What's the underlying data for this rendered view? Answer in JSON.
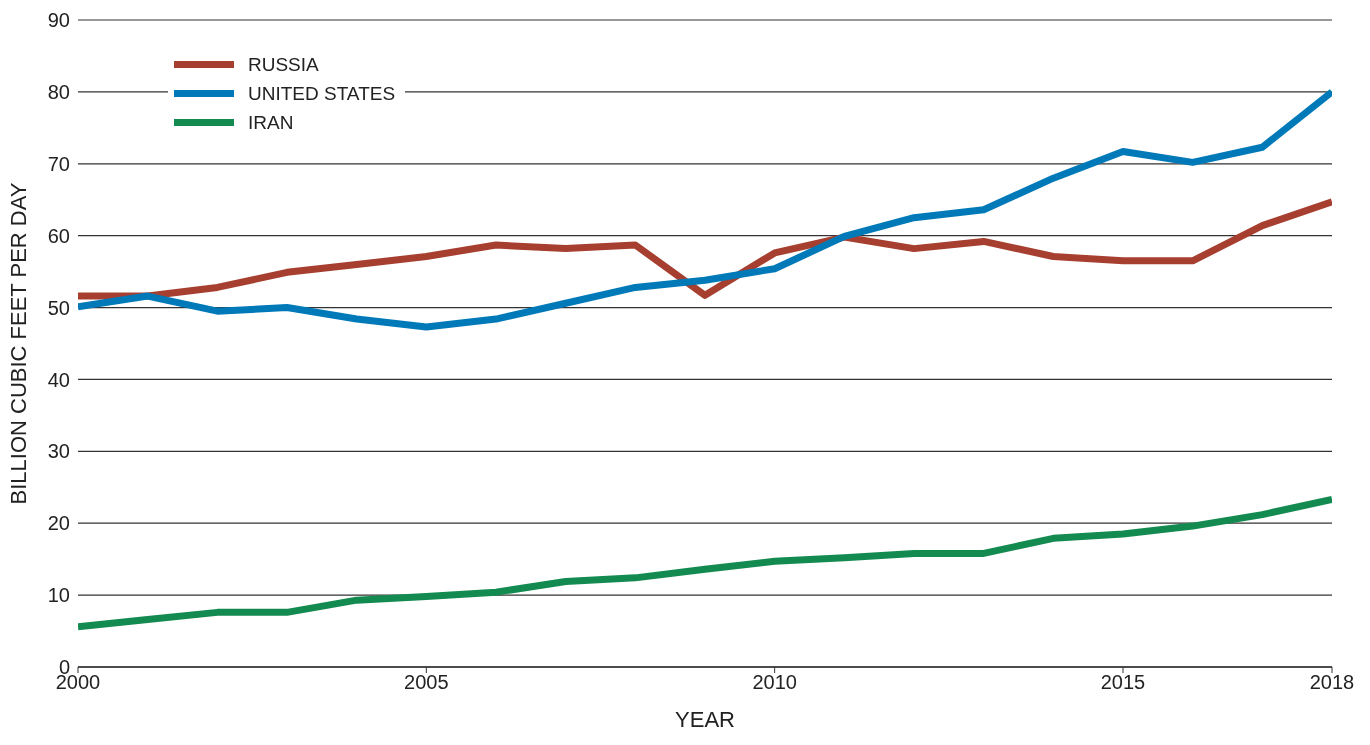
{
  "chart_data": {
    "type": "line",
    "xlabel": "YEAR",
    "ylabel": "BILLION CUBIC FEET PER DAY",
    "x": [
      2000,
      2001,
      2002,
      2003,
      2004,
      2005,
      2006,
      2007,
      2008,
      2009,
      2010,
      2011,
      2012,
      2013,
      2014,
      2015,
      2016,
      2017,
      2018
    ],
    "series": [
      {
        "name": "RUSSIA",
        "color": "#a63f2f",
        "values": [
          51.6,
          51.6,
          52.8,
          54.9,
          56.0,
          57.1,
          58.7,
          58.2,
          58.7,
          51.7,
          57.6,
          59.8,
          58.2,
          59.2,
          57.1,
          56.5,
          56.5,
          61.4,
          64.7
        ]
      },
      {
        "name": "UNITED STATES",
        "color": "#0079b8",
        "values": [
          50.1,
          51.6,
          49.5,
          50.0,
          48.4,
          47.3,
          48.4,
          50.6,
          52.8,
          53.8,
          55.4,
          59.9,
          62.5,
          63.6,
          68.0,
          71.7,
          70.2,
          72.3,
          80.0
        ]
      },
      {
        "name": "IRAN",
        "color": "#138a4f",
        "values": [
          5.6,
          6.6,
          7.6,
          7.6,
          9.3,
          9.8,
          10.4,
          11.9,
          12.4,
          13.6,
          14.7,
          15.2,
          15.8,
          15.8,
          17.9,
          18.5,
          19.6,
          21.2,
          23.3
        ]
      }
    ],
    "xlim": [
      2000,
      2018
    ],
    "xticks": [
      2000,
      2005,
      2010,
      2015,
      2018
    ],
    "ylim": [
      0,
      90
    ],
    "yticks": [
      0,
      10,
      20,
      30,
      40,
      50,
      60,
      70,
      80,
      90
    ],
    "grid": "y",
    "legend": "top left",
    "marker": "none",
    "line_style": "solid"
  }
}
